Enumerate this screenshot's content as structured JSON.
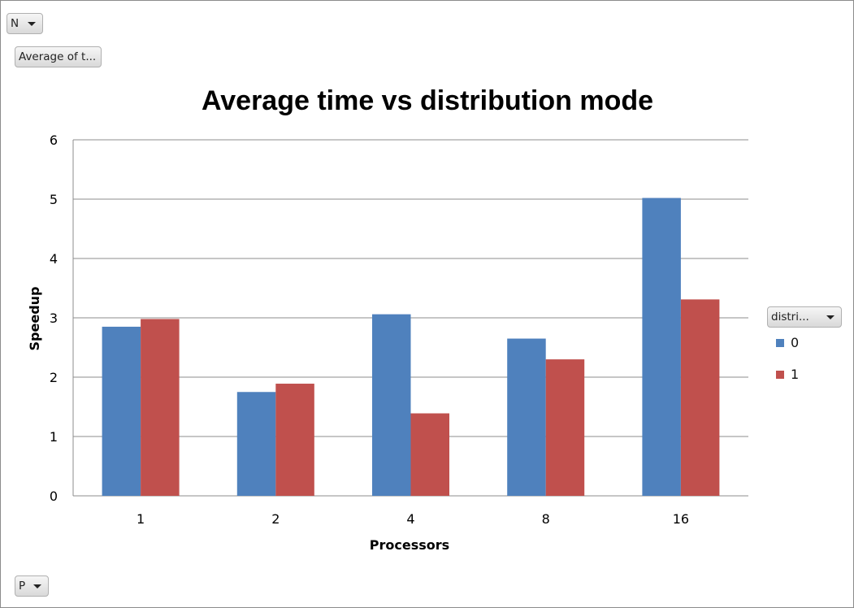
{
  "filters": {
    "top_field": "N",
    "values_field": "Average of t...",
    "axis_field": "P",
    "legend_field": "distri..."
  },
  "chart_data": {
    "type": "bar",
    "title": "Average time vs distribution mode",
    "xlabel": "Processors",
    "ylabel": "Speedup",
    "categories": [
      "1",
      "2",
      "4",
      "8",
      "16"
    ],
    "ylim": [
      0,
      6
    ],
    "yticks": [
      0,
      1,
      2,
      3,
      4,
      5,
      6
    ],
    "grid": true,
    "legend_position": "right",
    "series": [
      {
        "name": "0",
        "color": "#4f81bd",
        "values": [
          2.85,
          1.75,
          3.06,
          2.65,
          5.02
        ]
      },
      {
        "name": "1",
        "color": "#c0504d",
        "values": [
          2.98,
          1.89,
          1.39,
          2.3,
          3.31
        ]
      }
    ]
  }
}
